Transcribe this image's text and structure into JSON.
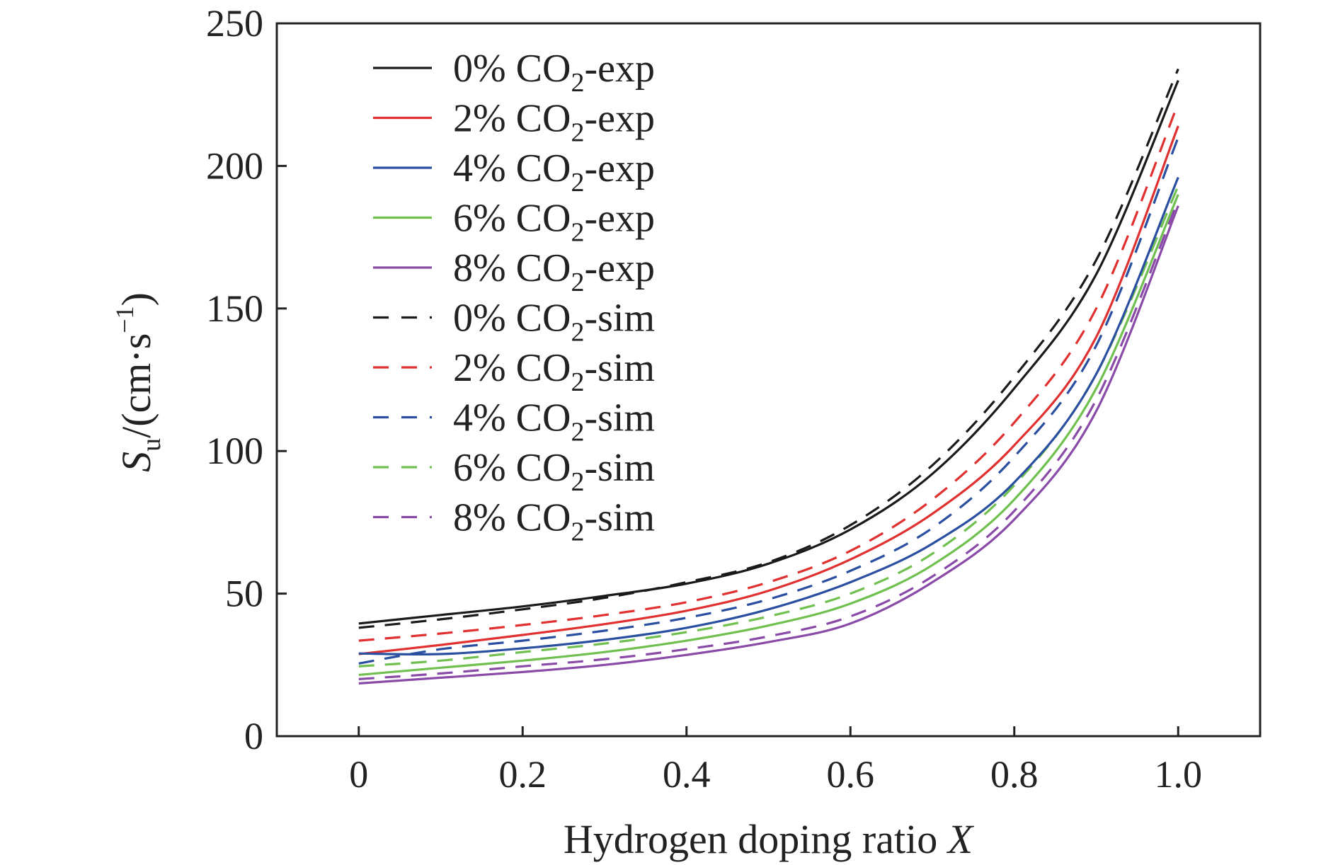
{
  "chart_data": {
    "type": "line",
    "title": "",
    "xlabel": "Hydrogen doping ratio X",
    "ylabel": "Su/(cm·s−1)",
    "x_axis": {
      "label_text": "Hydrogen doping ratio ",
      "label_var": "X",
      "range": [
        -0.1,
        1.1
      ],
      "ticks": [
        0,
        0.2,
        0.4,
        0.6,
        0.8,
        1.0
      ],
      "tick_labels": [
        "0",
        "0.2",
        "0.4",
        "0.6",
        "0.8",
        "1.0"
      ]
    },
    "y_axis": {
      "label_symbol": "S",
      "label_subscript": "u",
      "label_unit": "/(cm·s",
      "label_sup": "−1",
      "label_close": ")",
      "range": [
        0,
        250
      ],
      "ticks": [
        0,
        50,
        100,
        150,
        200,
        250
      ],
      "tick_labels": [
        "0",
        "50",
        "100",
        "150",
        "200",
        "250"
      ]
    },
    "grid": false,
    "legend_position": "top-left",
    "x": [
      0,
      0.1,
      0.2,
      0.3,
      0.4,
      0.5,
      0.6,
      0.7,
      0.8,
      0.9,
      1.0
    ],
    "series": [
      {
        "name": "0% CO2-exp",
        "label_prefix": "0% CO",
        "label_sub": "2",
        "label_suffix": "-exp",
        "color": "#1a1a1a",
        "dash": "solid",
        "values": [
          39.5,
          42.5,
          45.5,
          49.2,
          53.5,
          60.5,
          72.5,
          92,
          122,
          162,
          230
        ]
      },
      {
        "name": "2% CO2-exp",
        "label_prefix": "2% CO",
        "label_sub": "2",
        "label_suffix": "-exp",
        "color": "#e03030",
        "dash": "solid",
        "values": [
          28.8,
          32.0,
          35.5,
          39.3,
          44,
          51,
          62,
          78,
          102,
          140,
          214
        ]
      },
      {
        "name": "4% CO2-exp",
        "label_prefix": "4% CO",
        "label_sub": "2",
        "label_suffix": "-exp",
        "color": "#2a4ea0",
        "dash": "solid",
        "values": [
          29.0,
          28.8,
          30.8,
          33.8,
          38.0,
          44.5,
          54,
          67.5,
          89,
          127,
          196
        ]
      },
      {
        "name": "6% CO2-exp",
        "label_prefix": "6% CO",
        "label_sub": "2",
        "label_suffix": "-exp",
        "color": "#70c050",
        "dash": "solid",
        "values": [
          21.5,
          24.0,
          26.5,
          29.5,
          33.5,
          38.8,
          46.5,
          60,
          83,
          122,
          190
        ]
      },
      {
        "name": "8% CO2-exp",
        "label_prefix": "8% CO",
        "label_sub": "2",
        "label_suffix": "-exp",
        "color": "#8a4aa8",
        "dash": "solid",
        "values": [
          18.5,
          20.5,
          22.5,
          25.0,
          28.5,
          33.0,
          39.5,
          54,
          76,
          114,
          186
        ]
      },
      {
        "name": "0% CO2-sim",
        "label_prefix": "0% CO",
        "label_sub": "2",
        "label_suffix": "-sim",
        "color": "#1a1a1a",
        "dash": "dashed",
        "values": [
          38.0,
          41.0,
          44.5,
          48.5,
          54.0,
          61.0,
          74,
          95,
          126,
          167,
          234
        ]
      },
      {
        "name": "2% CO2-sim",
        "label_prefix": "2% CO",
        "label_sub": "2",
        "label_suffix": "-sim",
        "color": "#e03030",
        "dash": "dashed",
        "values": [
          33.5,
          36.0,
          39.0,
          42.5,
          47.0,
          54.0,
          65.0,
          83,
          110,
          150,
          222
        ]
      },
      {
        "name": "4% CO2-sim",
        "label_prefix": "4% CO",
        "label_sub": "2",
        "label_suffix": "-sim",
        "color": "#2a4ea0",
        "dash": "dashed",
        "values": [
          25.5,
          30.5,
          33.5,
          37.0,
          41.5,
          48.0,
          58.0,
          73,
          98,
          137,
          210
        ]
      },
      {
        "name": "6% CO2-sim",
        "label_prefix": "6% CO",
        "label_sub": "2",
        "label_suffix": "-sim",
        "color": "#70c050",
        "dash": "dashed",
        "values": [
          24.5,
          26.5,
          29.5,
          32.5,
          36.5,
          42.0,
          50.0,
          64,
          88,
          127,
          193
        ]
      },
      {
        "name": "8% CO2-sim",
        "label_prefix": "8% CO",
        "label_sub": "2",
        "label_suffix": "-sim",
        "color": "#8a4aa8",
        "dash": "dashed",
        "values": [
          20.0,
          22.0,
          24.5,
          27.0,
          30.5,
          35.0,
          42.0,
          56,
          79,
          118,
          188
        ]
      }
    ]
  }
}
